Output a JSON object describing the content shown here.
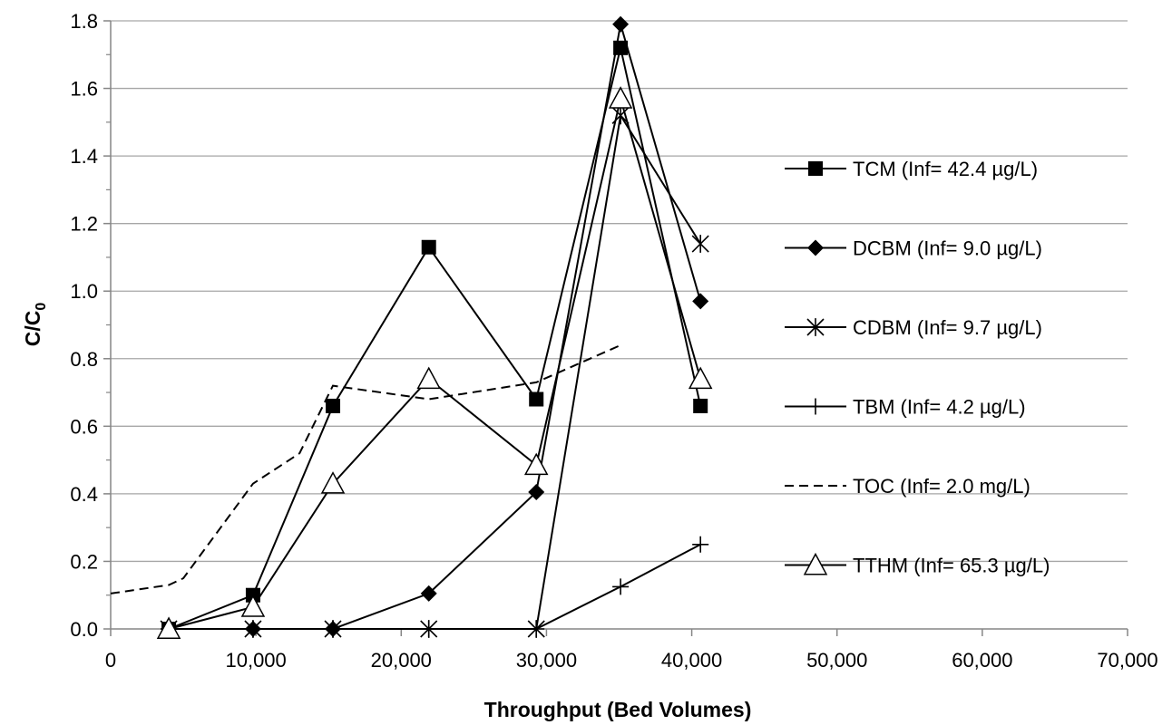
{
  "chart_data": {
    "type": "line",
    "xlabel": "Throughput (Bed Volumes)",
    "ylabel_main": "C/C",
    "ylabel_sub": "0",
    "xlim": [
      0,
      70000
    ],
    "ylim": [
      0,
      1.8
    ],
    "x_ticks": [
      0,
      10000,
      20000,
      30000,
      40000,
      50000,
      60000,
      70000
    ],
    "x_tick_labels": [
      "0",
      "10,000",
      "20,000",
      "30,000",
      "40,000",
      "50,000",
      "60,000",
      "70,000"
    ],
    "y_ticks": [
      0,
      0.2,
      0.4,
      0.6,
      0.8,
      1.0,
      1.2,
      1.4,
      1.6,
      1.8
    ],
    "y_tick_labels": [
      "0.0",
      "0.2",
      "0.4",
      "0.6",
      "0.8",
      "1.0",
      "1.2",
      "1.4",
      "1.6",
      "1.8"
    ],
    "grid": "horizontal",
    "legend_position": "right",
    "series": [
      {
        "name": "TCM (Inf= 42.4 µg/L)",
        "marker": "square",
        "dash": "solid",
        "x": [
          4000,
          9800,
          15300,
          21900,
          29300,
          35100,
          40600
        ],
        "y": [
          0,
          0.1,
          0.66,
          1.13,
          0.68,
          1.72,
          0.66
        ]
      },
      {
        "name": "DCBM (Inf= 9.0 µg/L)",
        "marker": "diamond",
        "dash": "solid",
        "x": [
          4000,
          9800,
          15300,
          21900,
          29300,
          35100,
          40600
        ],
        "y": [
          0,
          0,
          0,
          0.105,
          0.405,
          1.79,
          0.97
        ]
      },
      {
        "name": "CDBM (Inf= 9.7 µg/L)",
        "marker": "star",
        "dash": "solid",
        "x": [
          4000,
          9800,
          15300,
          21900,
          29300,
          35100,
          40600
        ],
        "y": [
          0,
          0,
          0,
          0,
          0,
          1.52,
          1.14
        ]
      },
      {
        "name": "TBM (Inf= 4.2 µg/L)",
        "marker": "plus",
        "dash": "solid",
        "x": [
          4000,
          9800,
          15300,
          21900,
          29300,
          35100,
          40600
        ],
        "y": [
          0,
          0,
          0,
          0,
          0,
          0.125,
          0.25
        ]
      },
      {
        "name": "TOC (Inf= 2.0 mg/L)",
        "marker": "none",
        "dash": "dashed",
        "x": [
          0,
          4000,
          5000,
          9800,
          13000,
          15300,
          21900,
          29300,
          35100
        ],
        "y": [
          0.105,
          0.13,
          0.15,
          0.43,
          0.52,
          0.72,
          0.68,
          0.73,
          0.84
        ]
      },
      {
        "name": "TTHM (Inf= 65.3 µg/L)",
        "marker": "triangle",
        "dash": "solid",
        "x": [
          4000,
          9800,
          15300,
          21900,
          29300,
          35100,
          40600
        ],
        "y": [
          0,
          0.065,
          0.43,
          0.74,
          0.485,
          1.57,
          0.74
        ]
      }
    ]
  }
}
